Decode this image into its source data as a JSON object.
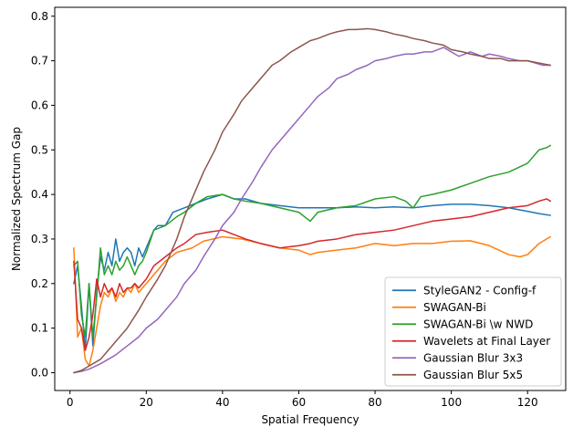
{
  "chart_data": {
    "type": "line",
    "xlabel": "Spatial Frequency",
    "ylabel": "Normalized Spectrum Gap",
    "xlim": [
      -4,
      130
    ],
    "ylim": [
      -0.04,
      0.82
    ],
    "xticks": [
      0,
      20,
      40,
      60,
      80,
      100,
      120
    ],
    "yticks": [
      0.0,
      0.1,
      0.2,
      0.3,
      0.4,
      0.5,
      0.6,
      0.7,
      0.8
    ],
    "xtick_labels": [
      "0",
      "20",
      "40",
      "60",
      "80",
      "100",
      "120"
    ],
    "ytick_labels": [
      "0.0",
      "0.1",
      "0.2",
      "0.3",
      "0.4",
      "0.5",
      "0.6",
      "0.7",
      "0.8"
    ],
    "grid": false,
    "legend_position": "lower-right",
    "series": [
      {
        "name": "StyleGAN2 - Config-f",
        "color": "#1f77b4",
        "points": [
          [
            1,
            0.2
          ],
          [
            2,
            0.24
          ],
          [
            3,
            0.15
          ],
          [
            4,
            0.05
          ],
          [
            5,
            0.2
          ],
          [
            6,
            0.06
          ],
          [
            7,
            0.18
          ],
          [
            8,
            0.26
          ],
          [
            9,
            0.23
          ],
          [
            10,
            0.27
          ],
          [
            11,
            0.24
          ],
          [
            12,
            0.3
          ],
          [
            13,
            0.25
          ],
          [
            14,
            0.27
          ],
          [
            15,
            0.28
          ],
          [
            16,
            0.27
          ],
          [
            17,
            0.24
          ],
          [
            18,
            0.28
          ],
          [
            19,
            0.26
          ],
          [
            20,
            0.28
          ],
          [
            21,
            0.3
          ],
          [
            22,
            0.32
          ],
          [
            23,
            0.33
          ],
          [
            25,
            0.33
          ],
          [
            27,
            0.36
          ],
          [
            30,
            0.37
          ],
          [
            33,
            0.38
          ],
          [
            36,
            0.39
          ],
          [
            40,
            0.4
          ],
          [
            43,
            0.39
          ],
          [
            46,
            0.39
          ],
          [
            50,
            0.38
          ],
          [
            55,
            0.375
          ],
          [
            60,
            0.37
          ],
          [
            65,
            0.37
          ],
          [
            70,
            0.37
          ],
          [
            75,
            0.372
          ],
          [
            80,
            0.37
          ],
          [
            85,
            0.372
          ],
          [
            90,
            0.37
          ],
          [
            95,
            0.375
          ],
          [
            100,
            0.378
          ],
          [
            105,
            0.378
          ],
          [
            110,
            0.375
          ],
          [
            115,
            0.37
          ],
          [
            120,
            0.362
          ],
          [
            123,
            0.357
          ],
          [
            126,
            0.353
          ]
        ]
      },
      {
        "name": "SWAGAN-Bi",
        "color": "#ff7f0e",
        "points": [
          [
            1,
            0.28
          ],
          [
            2,
            0.08
          ],
          [
            3,
            0.1
          ],
          [
            4,
            0.03
          ],
          [
            5,
            0.015
          ],
          [
            6,
            0.05
          ],
          [
            7,
            0.1
          ],
          [
            8,
            0.15
          ],
          [
            9,
            0.18
          ],
          [
            10,
            0.17
          ],
          [
            11,
            0.19
          ],
          [
            12,
            0.16
          ],
          [
            13,
            0.18
          ],
          [
            14,
            0.17
          ],
          [
            15,
            0.19
          ],
          [
            16,
            0.18
          ],
          [
            17,
            0.2
          ],
          [
            18,
            0.18
          ],
          [
            19,
            0.19
          ],
          [
            20,
            0.2
          ],
          [
            22,
            0.22
          ],
          [
            25,
            0.25
          ],
          [
            28,
            0.27
          ],
          [
            32,
            0.28
          ],
          [
            35,
            0.295
          ],
          [
            40,
            0.305
          ],
          [
            45,
            0.3
          ],
          [
            50,
            0.29
          ],
          [
            55,
            0.28
          ],
          [
            60,
            0.275
          ],
          [
            63,
            0.265
          ],
          [
            65,
            0.27
          ],
          [
            70,
            0.275
          ],
          [
            75,
            0.28
          ],
          [
            80,
            0.29
          ],
          [
            85,
            0.285
          ],
          [
            90,
            0.29
          ],
          [
            95,
            0.29
          ],
          [
            100,
            0.295
          ],
          [
            105,
            0.296
          ],
          [
            110,
            0.285
          ],
          [
            115,
            0.265
          ],
          [
            118,
            0.26
          ],
          [
            120,
            0.265
          ],
          [
            123,
            0.29
          ],
          [
            126,
            0.305
          ]
        ]
      },
      {
        "name": "SWAGAN-Bi \\w NWD",
        "color": "#2ca02c",
        "points": [
          [
            1,
            0.24
          ],
          [
            2,
            0.25
          ],
          [
            3,
            0.13
          ],
          [
            4,
            0.08
          ],
          [
            5,
            0.2
          ],
          [
            6,
            0.08
          ],
          [
            7,
            0.17
          ],
          [
            8,
            0.28
          ],
          [
            9,
            0.22
          ],
          [
            10,
            0.24
          ],
          [
            11,
            0.22
          ],
          [
            12,
            0.25
          ],
          [
            13,
            0.23
          ],
          [
            14,
            0.24
          ],
          [
            15,
            0.26
          ],
          [
            16,
            0.24
          ],
          [
            17,
            0.22
          ],
          [
            18,
            0.24
          ],
          [
            19,
            0.25
          ],
          [
            20,
            0.27
          ],
          [
            22,
            0.32
          ],
          [
            25,
            0.33
          ],
          [
            28,
            0.35
          ],
          [
            30,
            0.36
          ],
          [
            33,
            0.38
          ],
          [
            36,
            0.395
          ],
          [
            40,
            0.4
          ],
          [
            43,
            0.39
          ],
          [
            46,
            0.385
          ],
          [
            50,
            0.38
          ],
          [
            55,
            0.37
          ],
          [
            60,
            0.36
          ],
          [
            63,
            0.34
          ],
          [
            65,
            0.36
          ],
          [
            70,
            0.37
          ],
          [
            75,
            0.375
          ],
          [
            80,
            0.39
          ],
          [
            85,
            0.395
          ],
          [
            88,
            0.385
          ],
          [
            90,
            0.37
          ],
          [
            92,
            0.395
          ],
          [
            95,
            0.4
          ],
          [
            100,
            0.41
          ],
          [
            105,
            0.425
          ],
          [
            110,
            0.44
          ],
          [
            115,
            0.45
          ],
          [
            120,
            0.47
          ],
          [
            123,
            0.5
          ],
          [
            125,
            0.505
          ],
          [
            126,
            0.51
          ]
        ]
      },
      {
        "name": "Wavelets at Final Layer",
        "color": "#d62728",
        "points": [
          [
            1,
            0.25
          ],
          [
            2,
            0.12
          ],
          [
            3,
            0.1
          ],
          [
            4,
            0.05
          ],
          [
            5,
            0.08
          ],
          [
            6,
            0.13
          ],
          [
            7,
            0.21
          ],
          [
            8,
            0.17
          ],
          [
            9,
            0.2
          ],
          [
            10,
            0.18
          ],
          [
            11,
            0.19
          ],
          [
            12,
            0.17
          ],
          [
            13,
            0.2
          ],
          [
            14,
            0.18
          ],
          [
            15,
            0.19
          ],
          [
            16,
            0.19
          ],
          [
            17,
            0.2
          ],
          [
            18,
            0.19
          ],
          [
            19,
            0.2
          ],
          [
            20,
            0.21
          ],
          [
            22,
            0.24
          ],
          [
            25,
            0.26
          ],
          [
            28,
            0.28
          ],
          [
            30,
            0.29
          ],
          [
            33,
            0.31
          ],
          [
            36,
            0.315
          ],
          [
            40,
            0.32
          ],
          [
            43,
            0.31
          ],
          [
            46,
            0.3
          ],
          [
            50,
            0.29
          ],
          [
            55,
            0.28
          ],
          [
            60,
            0.285
          ],
          [
            63,
            0.29
          ],
          [
            65,
            0.295
          ],
          [
            70,
            0.3
          ],
          [
            75,
            0.31
          ],
          [
            80,
            0.315
          ],
          [
            85,
            0.32
          ],
          [
            90,
            0.33
          ],
          [
            95,
            0.34
          ],
          [
            100,
            0.345
          ],
          [
            105,
            0.35
          ],
          [
            110,
            0.36
          ],
          [
            115,
            0.37
          ],
          [
            120,
            0.375
          ],
          [
            123,
            0.385
          ],
          [
            125,
            0.39
          ],
          [
            126,
            0.385
          ]
        ]
      },
      {
        "name": "Gaussian Blur 3x3",
        "color": "#9467bd",
        "points": [
          [
            1,
            0.0
          ],
          [
            3,
            0.003
          ],
          [
            5,
            0.008
          ],
          [
            8,
            0.02
          ],
          [
            10,
            0.03
          ],
          [
            12,
            0.04
          ],
          [
            15,
            0.06
          ],
          [
            18,
            0.08
          ],
          [
            20,
            0.1
          ],
          [
            23,
            0.12
          ],
          [
            25,
            0.14
          ],
          [
            28,
            0.17
          ],
          [
            30,
            0.2
          ],
          [
            33,
            0.23
          ],
          [
            35,
            0.26
          ],
          [
            38,
            0.3
          ],
          [
            40,
            0.33
          ],
          [
            43,
            0.36
          ],
          [
            45,
            0.39
          ],
          [
            48,
            0.43
          ],
          [
            50,
            0.46
          ],
          [
            53,
            0.5
          ],
          [
            55,
            0.52
          ],
          [
            58,
            0.55
          ],
          [
            60,
            0.57
          ],
          [
            63,
            0.6
          ],
          [
            65,
            0.62
          ],
          [
            68,
            0.64
          ],
          [
            70,
            0.66
          ],
          [
            73,
            0.67
          ],
          [
            75,
            0.68
          ],
          [
            78,
            0.69
          ],
          [
            80,
            0.7
          ],
          [
            83,
            0.705
          ],
          [
            85,
            0.71
          ],
          [
            88,
            0.715
          ],
          [
            90,
            0.715
          ],
          [
            93,
            0.72
          ],
          [
            95,
            0.72
          ],
          [
            98,
            0.73
          ],
          [
            100,
            0.72
          ],
          [
            102,
            0.71
          ],
          [
            105,
            0.72
          ],
          [
            108,
            0.71
          ],
          [
            110,
            0.715
          ],
          [
            113,
            0.71
          ],
          [
            115,
            0.705
          ],
          [
            118,
            0.7
          ],
          [
            120,
            0.7
          ],
          [
            122,
            0.695
          ],
          [
            124,
            0.69
          ],
          [
            126,
            0.69
          ]
        ]
      },
      {
        "name": "Gaussian Blur 5x5",
        "color": "#8c564b",
        "points": [
          [
            1,
            0.0
          ],
          [
            3,
            0.005
          ],
          [
            5,
            0.015
          ],
          [
            8,
            0.03
          ],
          [
            10,
            0.05
          ],
          [
            12,
            0.07
          ],
          [
            15,
            0.1
          ],
          [
            18,
            0.14
          ],
          [
            20,
            0.17
          ],
          [
            23,
            0.21
          ],
          [
            25,
            0.24
          ],
          [
            28,
            0.3
          ],
          [
            30,
            0.35
          ],
          [
            33,
            0.41
          ],
          [
            35,
            0.45
          ],
          [
            38,
            0.5
          ],
          [
            40,
            0.54
          ],
          [
            43,
            0.58
          ],
          [
            45,
            0.61
          ],
          [
            48,
            0.64
          ],
          [
            50,
            0.66
          ],
          [
            53,
            0.69
          ],
          [
            55,
            0.7
          ],
          [
            58,
            0.72
          ],
          [
            60,
            0.73
          ],
          [
            63,
            0.745
          ],
          [
            65,
            0.75
          ],
          [
            68,
            0.76
          ],
          [
            70,
            0.765
          ],
          [
            73,
            0.77
          ],
          [
            75,
            0.77
          ],
          [
            78,
            0.772
          ],
          [
            80,
            0.77
          ],
          [
            83,
            0.765
          ],
          [
            85,
            0.76
          ],
          [
            88,
            0.755
          ],
          [
            90,
            0.75
          ],
          [
            93,
            0.745
          ],
          [
            95,
            0.74
          ],
          [
            98,
            0.735
          ],
          [
            100,
            0.725
          ],
          [
            103,
            0.72
          ],
          [
            105,
            0.715
          ],
          [
            108,
            0.71
          ],
          [
            110,
            0.705
          ],
          [
            113,
            0.705
          ],
          [
            115,
            0.7
          ],
          [
            118,
            0.7
          ],
          [
            120,
            0.7
          ],
          [
            123,
            0.695
          ],
          [
            126,
            0.69
          ]
        ]
      }
    ]
  }
}
